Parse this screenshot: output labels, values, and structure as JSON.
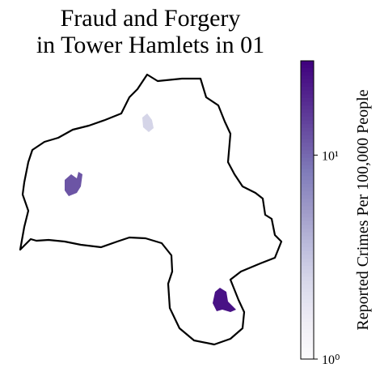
{
  "chart_data": {
    "type": "choropleth",
    "title": "Fraud and Forgery in Tower Hamlets in 01",
    "colorbar_label": "Reported Crimes Per 100,000 People",
    "colormap": "Purples",
    "log_scale": true,
    "clim": [
      1,
      29
    ],
    "cticks": [
      {
        "value": 1,
        "label": "10⁰"
      },
      {
        "value": 10,
        "label": "10¹"
      }
    ],
    "values": [
      2.5,
      12,
      24
    ]
  }
}
